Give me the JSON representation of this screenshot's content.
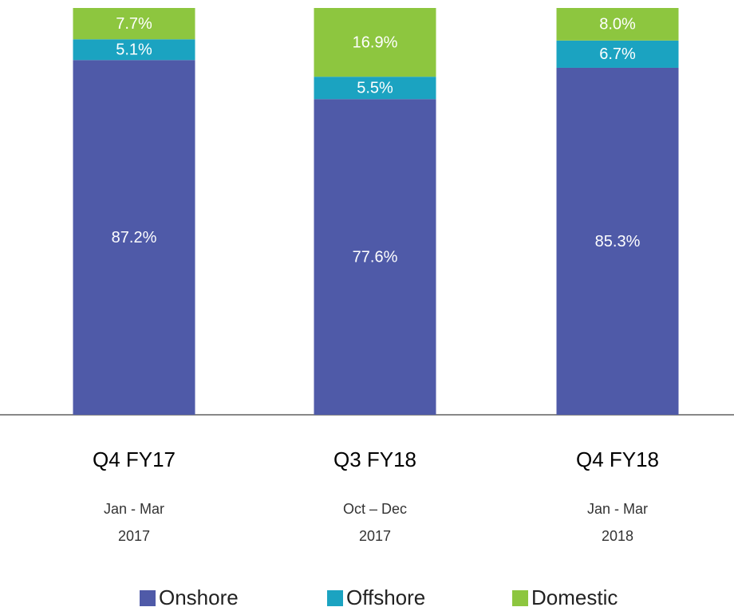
{
  "chart_data": {
    "type": "stacked_bar",
    "categories": [
      "Q4 FY17",
      "Q3 FY18",
      "Q4 FY18"
    ],
    "sublabels": [
      [
        "Jan - Mar",
        "2017"
      ],
      [
        "Oct – Dec",
        "2017"
      ],
      [
        "Jan - Mar",
        "2018"
      ]
    ],
    "series": [
      {
        "name": "Onshore",
        "color": "#4f5aa8",
        "values": [
          87.2,
          77.6,
          85.3
        ],
        "value_labels": [
          "87.2%",
          "77.6%",
          "85.3%"
        ]
      },
      {
        "name": "Offshore",
        "color": "#1ba3c1",
        "values": [
          5.1,
          5.5,
          6.7
        ],
        "value_labels": [
          "5.1%",
          "5.5%",
          "6.7%"
        ]
      },
      {
        "name": "Domestic",
        "color": "#8dc63f",
        "values": [
          7.7,
          16.9,
          8.0
        ],
        "value_labels": [
          "7.7%",
          "16.9%",
          "8.0%"
        ]
      }
    ],
    "ylim": [
      0,
      100
    ]
  }
}
